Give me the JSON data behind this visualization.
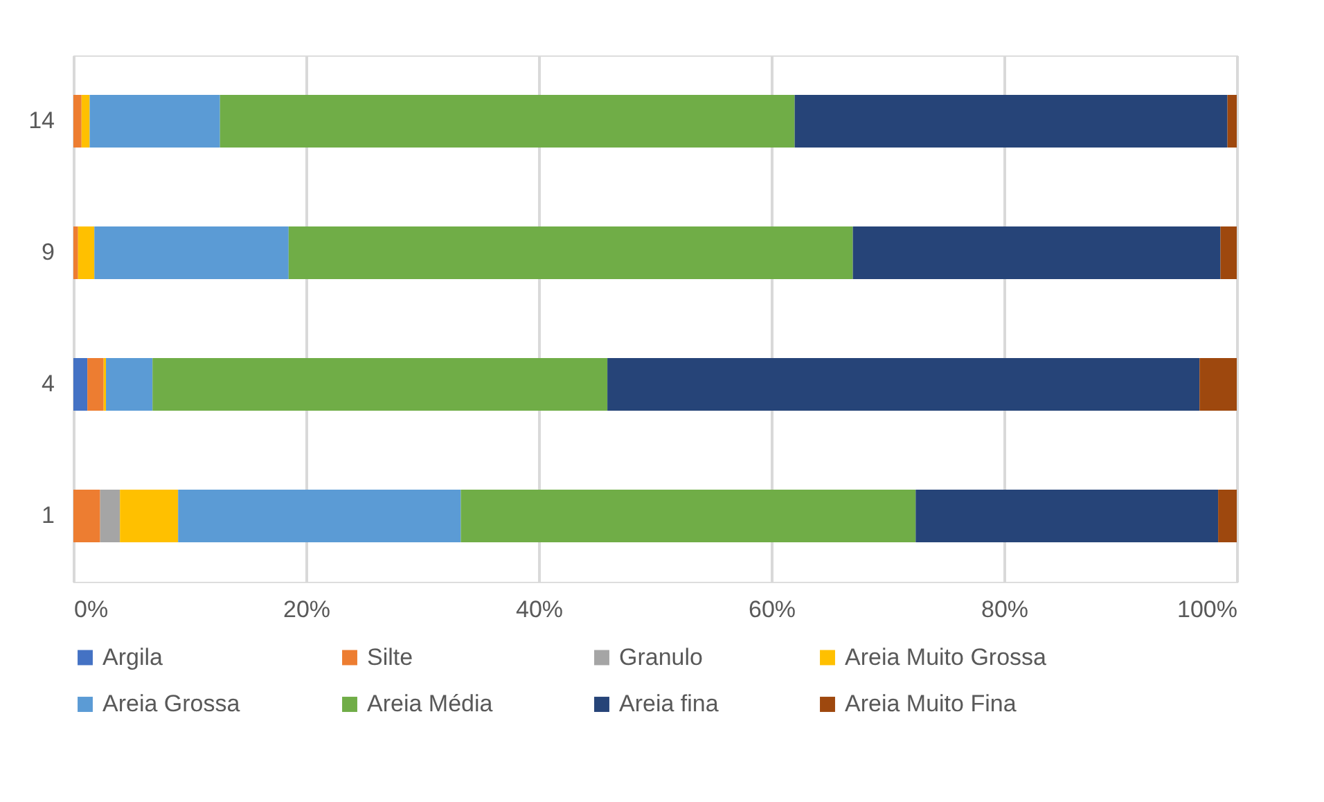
{
  "chart_data": {
    "type": "bar",
    "orientation": "horizontal",
    "stacked": true,
    "categories": [
      "14",
      "9",
      "4",
      "1"
    ],
    "series": [
      {
        "name": "Argila",
        "color": "#4472c4",
        "values": [
          0,
          0,
          1.2,
          0
        ]
      },
      {
        "name": "Silte",
        "color": "#ed7d31",
        "values": [
          0.7,
          0.4,
          1.4,
          2.3
        ]
      },
      {
        "name": "Granulo",
        "color": "#a5a5a5",
        "values": [
          0,
          0,
          0,
          1.7
        ]
      },
      {
        "name": "Areia Muito Grossa",
        "color": "#ffc000",
        "values": [
          0.7,
          1.4,
          0.2,
          5.0
        ]
      },
      {
        "name": "Areia Grossa",
        "color": "#5b9bd5",
        "values": [
          11.2,
          16.7,
          4.0,
          24.3
        ]
      },
      {
        "name": "Areia Média",
        "color": "#70ad47",
        "values": [
          49.4,
          48.5,
          39.1,
          39.1
        ]
      },
      {
        "name": "Areia fina",
        "color": "#264478",
        "values": [
          37.2,
          31.6,
          50.9,
          26.0
        ]
      },
      {
        "name": "Areia Muito Fina",
        "color": "#9e480e",
        "values": [
          0.8,
          1.4,
          3.2,
          1.6
        ]
      }
    ],
    "xlim": [
      0,
      100
    ],
    "xticks": [
      {
        "value": 0,
        "label": "0%"
      },
      {
        "value": 20,
        "label": "20%"
      },
      {
        "value": 40,
        "label": "40%"
      },
      {
        "value": 60,
        "label": "60%"
      },
      {
        "value": 80,
        "label": "80%"
      },
      {
        "value": 100,
        "label": "100%"
      }
    ],
    "grid": "x",
    "legend": "bottom"
  }
}
